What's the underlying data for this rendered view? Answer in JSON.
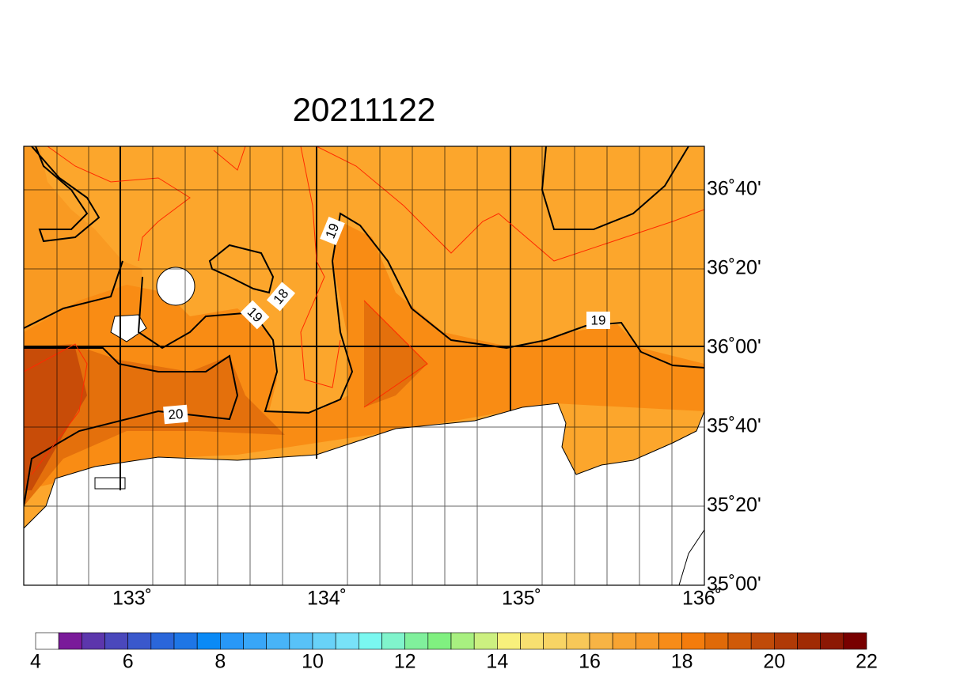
{
  "title": "20211122",
  "lon_labels": [
    "133˚",
    "134˚",
    "135˚",
    "136˚"
  ],
  "lat_labels": [
    "36˚40'",
    "36˚20'",
    "36˚00'",
    "35˚40'",
    "35˚20'",
    "35˚00'"
  ],
  "contour_labels": [
    "19",
    "19",
    "18",
    "19",
    "20"
  ],
  "colorbar": {
    "lim": [
      4,
      22
    ],
    "ticks": [
      4,
      6,
      8,
      10,
      12,
      14,
      16,
      18,
      20,
      22
    ],
    "colors": [
      "#ffffff",
      "#7a1a9a",
      "#5c36ac",
      "#4a48bc",
      "#3a58cc",
      "#2a66da",
      "#1e76e6",
      "#0a8af6",
      "#2898f8",
      "#38a6f8",
      "#48b4f8",
      "#58c2f8",
      "#68d2f8",
      "#78e2f8",
      "#7af8f0",
      "#80f4cc",
      "#80f09c",
      "#80f080",
      "#a8f080",
      "#ccf080",
      "#f8f07c",
      "#f8e070",
      "#f8d464",
      "#f8c858",
      "#f8b444",
      "#f8a432",
      "#f89a28",
      "#f88c18",
      "#f47c0c",
      "#e06a08",
      "#d05a08",
      "#c04a08",
      "#b03a06",
      "#a02a04",
      "#8c1804",
      "#780000"
    ]
  }
}
